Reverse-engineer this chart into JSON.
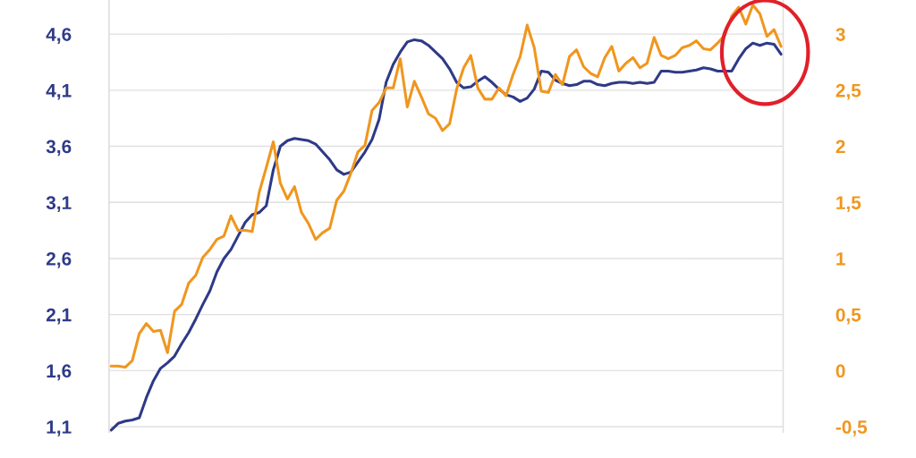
{
  "chart_data": {
    "type": "line",
    "grid": "y",
    "tick_labels": "y",
    "categories": [
      null,
      null,
      null,
      null,
      null,
      null,
      null,
      null,
      null,
      null,
      null,
      null,
      null,
      null,
      null,
      null,
      null,
      null,
      null,
      null,
      null,
      null,
      null,
      null,
      null,
      null,
      null,
      null,
      null,
      null,
      null,
      null,
      null,
      null,
      null,
      null,
      null,
      null,
      null,
      null,
      null,
      null,
      null,
      null,
      null,
      null,
      null,
      null,
      null,
      null,
      null,
      null,
      null,
      null,
      null,
      null,
      null,
      null,
      null,
      null,
      null,
      null,
      null,
      null,
      null,
      null,
      null,
      null,
      null,
      null,
      null,
      null,
      null,
      null,
      null,
      null,
      null,
      null,
      null,
      null,
      null,
      null,
      null,
      null,
      null,
      null,
      null,
      null,
      null,
      null,
      null,
      null,
      null,
      null,
      null,
      null
    ],
    "ylim": [
      1.05,
      4.9
    ],
    "y2lim": [
      -0.55,
      3.3
    ],
    "yticks": [
      {
        "value": 1.1,
        "label": "1,1"
      },
      {
        "value": 1.6,
        "label": "1,6"
      },
      {
        "value": 2.1,
        "label": "2,1"
      },
      {
        "value": 2.6,
        "label": "2,6"
      },
      {
        "value": 3.1,
        "label": "3,1"
      },
      {
        "value": 3.6,
        "label": "3,6"
      },
      {
        "value": 4.1,
        "label": "4,1"
      },
      {
        "value": 4.6,
        "label": "4,6"
      }
    ],
    "y2ticks": [
      {
        "value": -0.5,
        "label": "-0,5"
      },
      0,
      {
        "value": 0.5,
        "label": "0,5"
      },
      1,
      {
        "value": 1.5,
        "label": "1,5"
      },
      2,
      {
        "value": 2.5,
        "label": "2,5"
      },
      3
    ],
    "series": [
      {
        "color": "#2e3a87",
        "values": [
          1.07,
          1.13,
          1.15,
          1.16,
          1.18,
          1.36,
          1.51,
          1.62,
          1.67,
          1.73,
          1.84,
          1.94,
          2.06,
          2.19,
          2.31,
          2.48,
          2.6,
          2.68,
          2.8,
          2.92,
          2.99,
          3.01,
          3.07,
          3.39,
          3.6,
          3.65,
          3.67,
          3.66,
          3.65,
          3.62,
          3.55,
          3.48,
          3.39,
          3.35,
          3.37,
          3.46,
          3.55,
          3.66,
          3.84,
          4.17,
          4.33,
          4.44,
          4.53,
          4.55,
          4.54,
          4.5,
          4.44,
          4.38,
          4.29,
          4.17,
          4.12,
          4.13,
          4.18,
          4.22,
          4.17,
          4.11,
          4.06,
          4.04,
          4.0,
          4.03,
          4.11,
          4.27,
          4.26,
          4.19,
          4.16,
          4.14,
          4.15,
          4.18,
          4.18,
          4.15,
          4.14,
          4.16,
          4.17,
          4.17,
          4.16,
          4.17,
          4.16,
          4.17,
          4.27,
          4.27,
          4.26,
          4.26,
          4.27,
          4.28,
          4.3,
          4.29,
          4.27,
          4.27,
          4.27,
          4.38,
          4.47,
          4.52,
          4.5,
          4.52,
          4.51,
          4.42
        ]
      },
      {
        "color": "#f0961e",
        "axis": "y2",
        "values": [
          0.04,
          0.04,
          0.03,
          0.09,
          0.33,
          0.42,
          0.35,
          0.36,
          0.16,
          0.53,
          0.59,
          0.78,
          0.85,
          1.01,
          1.08,
          1.17,
          1.2,
          1.38,
          1.25,
          1.25,
          1.24,
          1.59,
          1.81,
          2.04,
          1.67,
          1.53,
          1.64,
          1.41,
          1.31,
          1.17,
          1.23,
          1.27,
          1.52,
          1.6,
          1.76,
          1.95,
          2.01,
          2.32,
          2.39,
          2.52,
          2.52,
          2.78,
          2.35,
          2.58,
          2.44,
          2.29,
          2.25,
          2.14,
          2.2,
          2.51,
          2.7,
          2.81,
          2.52,
          2.42,
          2.42,
          2.52,
          2.45,
          2.64,
          2.8,
          3.08,
          2.88,
          2.49,
          2.48,
          2.64,
          2.55,
          2.8,
          2.86,
          2.71,
          2.65,
          2.62,
          2.79,
          2.89,
          2.67,
          2.74,
          2.79,
          2.7,
          2.74,
          2.97,
          2.81,
          2.78,
          2.81,
          2.88,
          2.9,
          2.94,
          2.87,
          2.86,
          2.92,
          2.99,
          3.16,
          3.24,
          3.09,
          3.26,
          3.18,
          2.98,
          3.04,
          2.89
        ]
      }
    ]
  }
}
